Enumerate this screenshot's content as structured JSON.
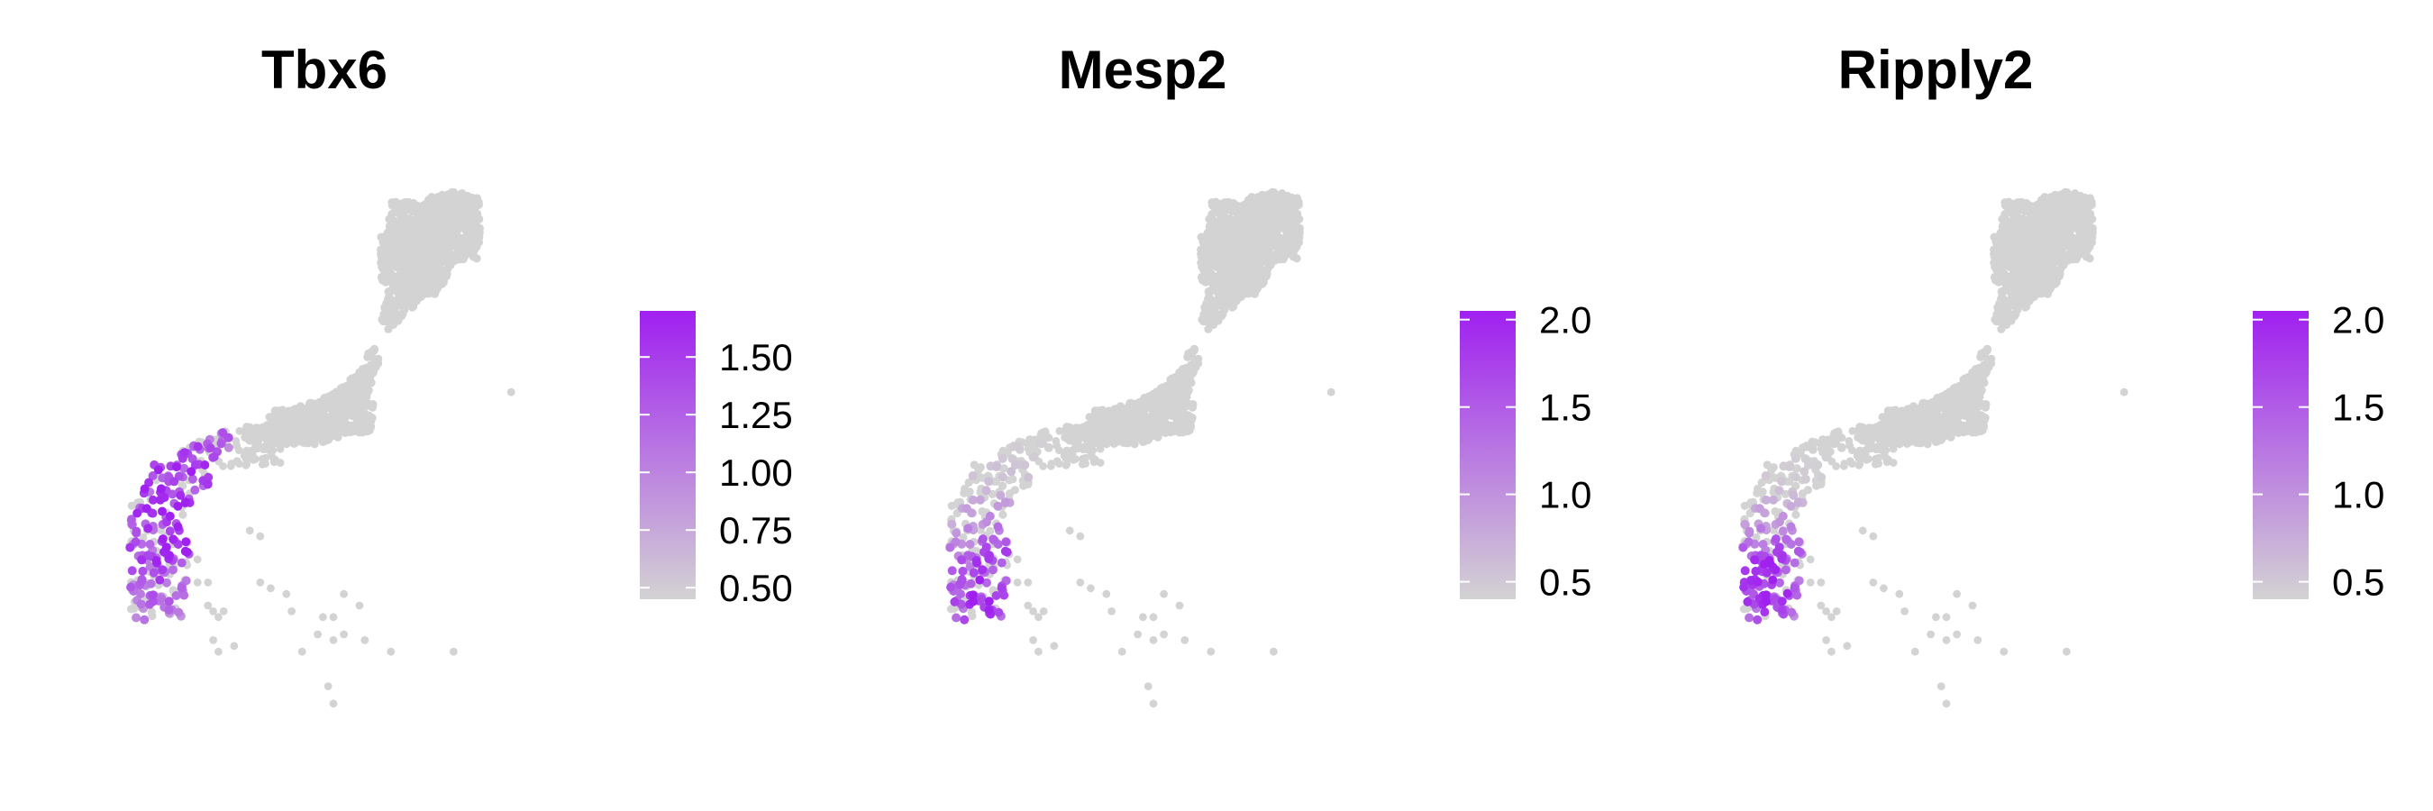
{
  "chart_data": [
    {
      "type": "scatter",
      "title": "Tbx6",
      "xlabel": "",
      "ylabel": "",
      "xlim": [
        0,
        1
      ],
      "ylim": [
        0,
        1
      ],
      "grid": false,
      "legend": {
        "placement": "right",
        "type": "colorbar",
        "range": [
          0.45,
          1.7
        ],
        "ticks": [
          "0.50",
          "0.75",
          "1.00",
          "1.25",
          "1.50"
        ],
        "low_color": "#d3d3d3",
        "high_color": "#a020f0"
      },
      "hotspot": {
        "x": 0.21,
        "y": 0.64,
        "spread": 0.17,
        "max": 1.7,
        "fraction": 0.55
      }
    },
    {
      "type": "scatter",
      "title": "Mesp2",
      "xlabel": "",
      "ylabel": "",
      "xlim": [
        0,
        1
      ],
      "ylim": [
        0,
        1
      ],
      "grid": false,
      "legend": {
        "placement": "right",
        "type": "colorbar",
        "range": [
          0.4,
          2.05
        ],
        "ticks": [
          "0.5",
          "1.0",
          "1.5",
          "2.0"
        ],
        "low_color": "#d3d3d3",
        "high_color": "#a020f0"
      },
      "hotspot": {
        "x": 0.2,
        "y": 0.78,
        "spread": 0.1,
        "max": 2.05,
        "fraction": 0.5
      }
    },
    {
      "type": "scatter",
      "title": "Ripply2",
      "xlabel": "",
      "ylabel": "",
      "xlim": [
        0,
        1
      ],
      "ylim": [
        0,
        1
      ],
      "grid": false,
      "legend": {
        "placement": "right",
        "type": "colorbar",
        "range": [
          0.4,
          2.05
        ],
        "ticks": [
          "0.5",
          "1.0",
          "1.5",
          "2.0"
        ],
        "low_color": "#d3d3d3",
        "high_color": "#a020f0"
      },
      "hotspot": {
        "x": 0.16,
        "y": 0.76,
        "spread": 0.08,
        "max": 2.05,
        "fraction": 0.65
      }
    }
  ],
  "embedding": {
    "blob": [
      [
        0.6,
        0.1
      ],
      [
        0.66,
        0.08
      ],
      [
        0.73,
        0.1
      ],
      [
        0.78,
        0.14
      ],
      [
        0.78,
        0.2
      ],
      [
        0.74,
        0.26
      ],
      [
        0.68,
        0.31
      ],
      [
        0.62,
        0.37
      ],
      [
        0.59,
        0.45
      ],
      [
        0.58,
        0.5
      ],
      [
        0.53,
        0.52
      ],
      [
        0.47,
        0.52
      ],
      [
        0.42,
        0.52
      ],
      [
        0.37,
        0.51
      ],
      [
        0.33,
        0.49
      ],
      [
        0.36,
        0.46
      ],
      [
        0.42,
        0.44
      ],
      [
        0.48,
        0.41
      ],
      [
        0.53,
        0.37
      ],
      [
        0.57,
        0.31
      ],
      [
        0.59,
        0.24
      ],
      [
        0.59,
        0.16
      ]
    ],
    "bridge": [
      [
        0.3,
        0.49
      ],
      [
        0.4,
        0.49
      ],
      [
        0.4,
        0.56
      ],
      [
        0.28,
        0.55
      ]
    ],
    "cluster": [
      [
        0.18,
        0.51
      ],
      [
        0.25,
        0.49
      ],
      [
        0.3,
        0.53
      ],
      [
        0.28,
        0.6
      ],
      [
        0.24,
        0.68
      ],
      [
        0.23,
        0.76
      ],
      [
        0.22,
        0.82
      ],
      [
        0.17,
        0.83
      ],
      [
        0.13,
        0.79
      ],
      [
        0.11,
        0.71
      ],
      [
        0.11,
        0.62
      ],
      [
        0.13,
        0.55
      ]
    ],
    "sparse": [
      [
        0.21,
        0.63
      ],
      [
        0.22,
        0.73
      ],
      [
        0.24,
        0.72
      ],
      [
        0.24,
        0.76
      ],
      [
        0.26,
        0.76
      ],
      [
        0.26,
        0.8
      ],
      [
        0.27,
        0.81
      ],
      [
        0.28,
        0.82
      ],
      [
        0.29,
        0.81
      ],
      [
        0.27,
        0.86
      ],
      [
        0.28,
        0.88
      ],
      [
        0.31,
        0.87
      ],
      [
        0.36,
        0.76
      ],
      [
        0.38,
        0.77
      ],
      [
        0.41,
        0.78
      ],
      [
        0.42,
        0.81
      ],
      [
        0.44,
        0.88
      ],
      [
        0.47,
        0.85
      ],
      [
        0.48,
        0.82
      ],
      [
        0.5,
        0.82
      ],
      [
        0.5,
        0.86
      ],
      [
        0.52,
        0.85
      ],
      [
        0.52,
        0.78
      ],
      [
        0.55,
        0.8
      ],
      [
        0.56,
        0.86
      ],
      [
        0.61,
        0.88
      ],
      [
        0.49,
        0.94
      ],
      [
        0.5,
        0.97
      ],
      [
        0.73,
        0.88
      ],
      [
        0.34,
        0.67
      ],
      [
        0.36,
        0.68
      ],
      [
        0.84,
        0.43
      ]
    ]
  }
}
